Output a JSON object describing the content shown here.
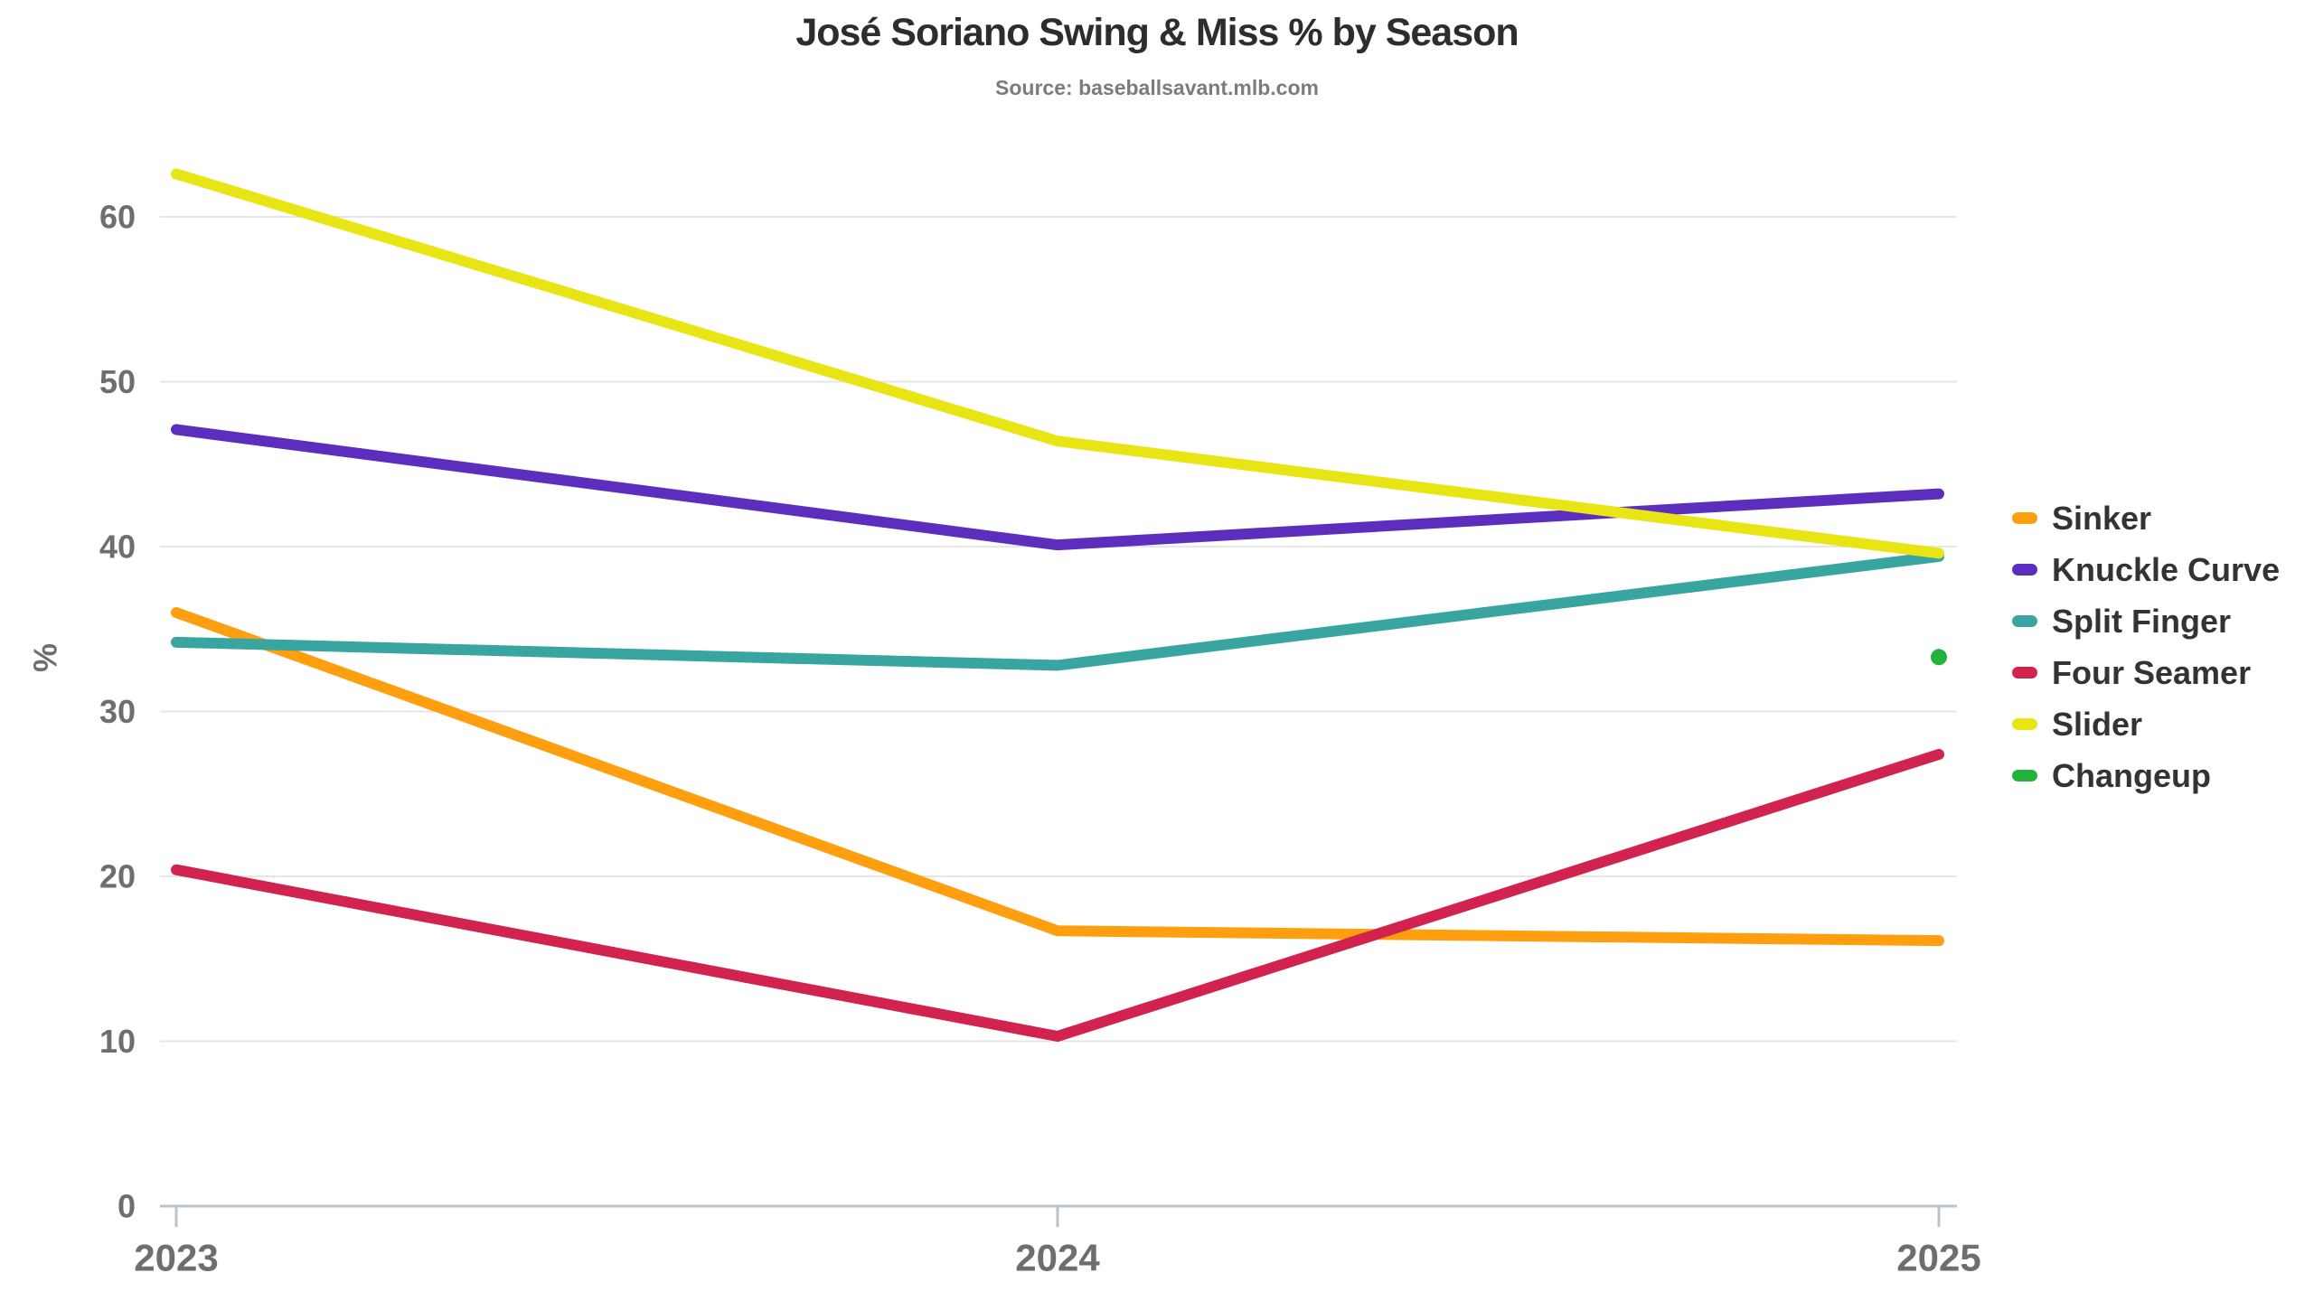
{
  "title": "José Soriano Swing & Miss % by Season",
  "subtitle": "Source: baseballsavant.mlb.com",
  "chart_data": {
    "type": "line",
    "x": [
      "2023",
      "2024",
      "2025"
    ],
    "series": [
      {
        "name": "Sinker",
        "color": "#FF9E0E",
        "values": [
          36.0,
          16.7,
          16.1
        ]
      },
      {
        "name": "Knuckle Curve",
        "color": "#5B2EBE",
        "values": [
          47.1,
          40.1,
          43.2
        ]
      },
      {
        "name": "Split Finger",
        "color": "#39A5A0",
        "values": [
          34.2,
          32.8,
          39.4
        ]
      },
      {
        "name": "Four Seamer",
        "color": "#D2234E",
        "values": [
          20.4,
          10.3,
          27.4
        ]
      },
      {
        "name": "Slider",
        "color": "#E9E413",
        "values": [
          62.6,
          46.4,
          39.6
        ]
      },
      {
        "name": "Changeup",
        "color": "#23B23B",
        "values": [
          null,
          null,
          33.3
        ],
        "style": "point"
      }
    ],
    "ylabel": "%",
    "yticks": [
      0,
      10,
      20,
      30,
      40,
      50,
      60
    ],
    "ylim": [
      0,
      66
    ],
    "grid": "horizontal",
    "legend_position": "right",
    "colors": {
      "grid_line": "#e6e6e6",
      "axis_line": "#b8c4cd",
      "tick_label": "#6e6e6e",
      "axis_title": "#6e6e6e"
    }
  }
}
